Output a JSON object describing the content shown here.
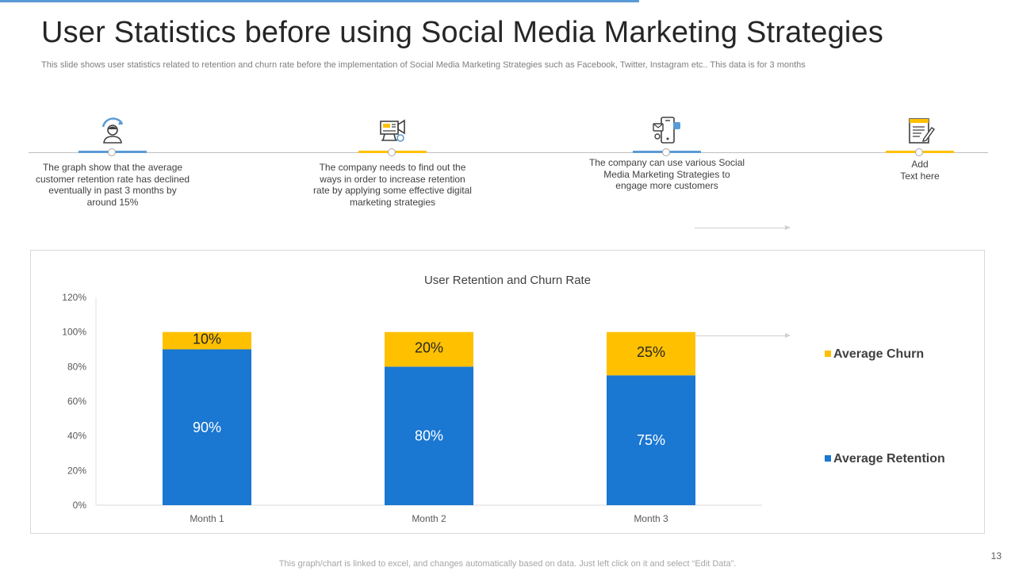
{
  "slide": {
    "title": "User Statistics before using Social Media Marketing Strategies",
    "subtitle": "This slide shows user statistics related to retention and churn rate before the implementation of Social Media Marketing Strategies such as Facebook, Twitter, Instagram etc.. This data is for 3 months",
    "footer_note": "This graph/chart is linked to excel,  and changes automatically based on data. Just left click on it and select “Edit Data”.",
    "page_number": "13"
  },
  "timeline": [
    {
      "icon": "user-refresh-icon",
      "accent": "#5b9bd5",
      "text": "The graph show that the average customer retention rate has declined eventually in past 3 months by around 15%"
    },
    {
      "icon": "digital-marketing-icon",
      "accent": "#ffc000",
      "text": "The company needs to find out the ways in order to increase retention rate by applying some effective digital marketing strategies"
    },
    {
      "icon": "mobile-social-icon",
      "accent": "#5b9bd5",
      "text": "The company can use various Social Media Marketing Strategies to engage more customers"
    },
    {
      "icon": "notepad-edit-icon",
      "accent": "#ffc000",
      "text": "Add\nText here"
    }
  ],
  "chart_data": {
    "type": "bar",
    "stacked": true,
    "title": "User Retention and Churn Rate",
    "categories": [
      "Month 1",
      "Month 2",
      "Month 3"
    ],
    "series": [
      {
        "name": "Average Retention",
        "values": [
          90,
          80,
          75
        ],
        "labels": [
          "90%",
          "80%",
          "75%"
        ],
        "color": "#1a77d2"
      },
      {
        "name": "Average Churn",
        "values": [
          10,
          20,
          25
        ],
        "labels": [
          "10%",
          "20%",
          "25%"
        ],
        "color": "#ffc000"
      }
    ],
    "ylim": [
      0,
      120
    ],
    "yticks": [
      0,
      20,
      40,
      60,
      80,
      100,
      120
    ],
    "ytick_labels": [
      "0%",
      "20%",
      "40%",
      "60%",
      "80%",
      "100%",
      "120%"
    ],
    "grid": false,
    "legend": "right",
    "legend_order": [
      "Average Churn",
      "Average Retention"
    ]
  }
}
